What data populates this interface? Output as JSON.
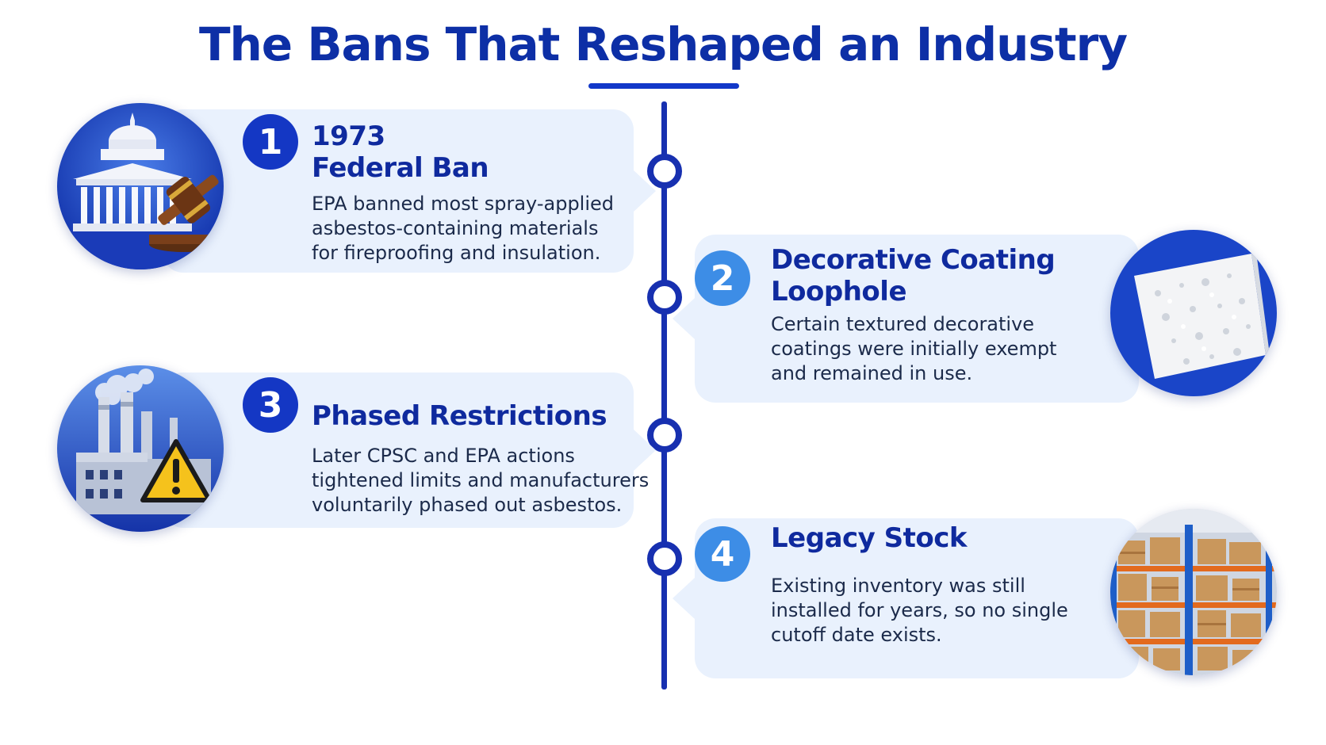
{
  "title": "The Bans That Reshaped an Industry",
  "colors": {
    "title": "#0d2fa6",
    "timeline": "#1730b0",
    "card_bg": "#e9f1fd",
    "badge_dark": "#1437c4",
    "badge_light": "#3d8de6"
  },
  "items": [
    {
      "number": "1",
      "heading_lines": [
        "1973",
        "Federal Ban"
      ],
      "description_lines": [
        "EPA banned most spray-applied",
        "asbestos-containing materials",
        "for fireproofing and insulation."
      ],
      "icon": "capitol-gavel-icon"
    },
    {
      "number": "2",
      "heading_lines": [
        "Decorative Coating",
        "Loophole"
      ],
      "description_lines": [
        "Certain textured decorative",
        "coatings were initially exempt",
        "and remained in use."
      ],
      "icon": "textured-coating-icon"
    },
    {
      "number": "3",
      "heading_lines": [
        "Phased Restrictions"
      ],
      "description_lines": [
        "Later CPSC and EPA actions",
        "tightened limits and manufacturers",
        "voluntarily phased out asbestos."
      ],
      "icon": "factory-warning-icon"
    },
    {
      "number": "4",
      "heading_lines": [
        "Legacy Stock"
      ],
      "description_lines": [
        "Existing inventory was still",
        "installed for years, so no single",
        "cutoff date exists."
      ],
      "icon": "warehouse-shelves-icon"
    }
  ]
}
